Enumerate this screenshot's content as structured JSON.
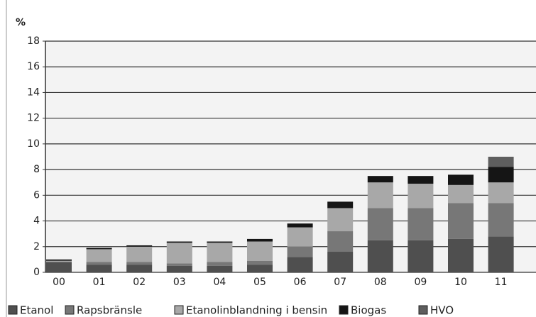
{
  "chart_data": {
    "type": "stacked_bar",
    "y_label": "%",
    "categories": [
      "00",
      "01",
      "02",
      "03",
      "04",
      "05",
      "06",
      "07",
      "08",
      "09",
      "10",
      "11"
    ],
    "series": [
      {
        "name": "Etanol",
        "color": "#4f4f4f",
        "values": [
          0.8,
          0.6,
          0.6,
          0.5,
          0.5,
          0.6,
          1.2,
          1.6,
          2.5,
          2.5,
          2.6,
          2.8
        ]
      },
      {
        "name": "Rapsbränsle",
        "color": "#777777",
        "values": [
          0,
          0.2,
          0.2,
          0.2,
          0.3,
          0.3,
          0.8,
          1.6,
          2.5,
          2.5,
          2.8,
          2.6
        ]
      },
      {
        "name": "Etanolinblandning i bensin",
        "color": "#a8a8a8",
        "values": [
          0.1,
          1.0,
          1.2,
          1.6,
          1.5,
          1.5,
          1.5,
          1.8,
          2.0,
          1.9,
          1.4,
          1.6
        ]
      },
      {
        "name": "Biogas",
        "color": "#151515",
        "values": [
          0.1,
          0.1,
          0.1,
          0.1,
          0.1,
          0.2,
          0.3,
          0.5,
          0.5,
          0.6,
          0.8,
          1.2
        ]
      },
      {
        "name": "HVO",
        "color": "#5e5e5e",
        "values": [
          0,
          0,
          0,
          0,
          0,
          0,
          0,
          0,
          0,
          0,
          0,
          0.8
        ]
      }
    ],
    "ylim": [
      0,
      18
    ],
    "yticks": [
      0,
      2,
      4,
      6,
      8,
      10,
      12,
      14,
      16,
      18
    ],
    "grid": true
  }
}
